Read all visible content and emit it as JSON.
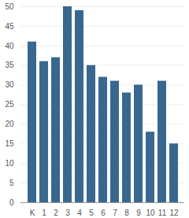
{
  "chart_data": {
    "type": "bar",
    "categories": [
      "K",
      "1",
      "2",
      "3",
      "4",
      "5",
      "6",
      "7",
      "8",
      "9",
      "10",
      "11",
      "12"
    ],
    "values": [
      41,
      36,
      37,
      50,
      49,
      35,
      32,
      31,
      28,
      30,
      18,
      31,
      15
    ],
    "color": "#386890",
    "ylim": [
      0,
      50
    ],
    "yticks": [
      0,
      5,
      10,
      15,
      20,
      25,
      30,
      35,
      40,
      45,
      50
    ],
    "grid": true
  }
}
